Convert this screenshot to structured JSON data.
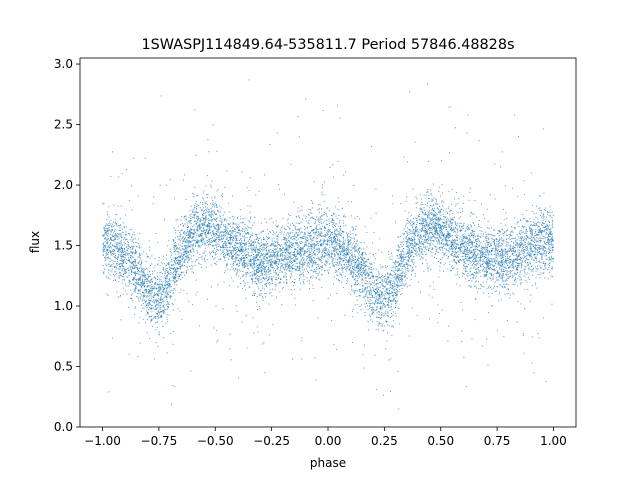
{
  "chart_data": {
    "type": "scatter",
    "title": "1SWASPJ114849.64-535811.7 Period 57846.48828s",
    "xlabel": "phase",
    "ylabel": "flux",
    "xlim": [
      -1.1,
      1.1
    ],
    "ylim": [
      0.0,
      3.05
    ],
    "xticks": [
      -1.0,
      -0.75,
      -0.5,
      -0.25,
      0.0,
      0.25,
      0.5,
      0.75,
      1.0
    ],
    "xtick_labels": [
      "−1.00",
      "−0.75",
      "−0.50",
      "−0.25",
      "0.00",
      "0.25",
      "0.50",
      "0.75",
      "1.00"
    ],
    "yticks": [
      0.0,
      0.5,
      1.0,
      1.5,
      2.0,
      2.5,
      3.0
    ],
    "ytick_labels": [
      "0.0",
      "0.5",
      "1.0",
      "1.5",
      "2.0",
      "2.5",
      "3.0"
    ],
    "grid": false,
    "legend": "none",
    "marker_color": "#1f77b4",
    "series": [
      {
        "description_of_trend_points": "phase-folded light curve, mirrored over two cycles",
        "x": [
          -1.0,
          -0.95,
          -0.9,
          -0.85,
          -0.8,
          -0.75,
          -0.7,
          -0.65,
          -0.6,
          -0.55,
          -0.5,
          -0.45,
          -0.4,
          -0.35,
          -0.3,
          -0.25,
          -0.2,
          -0.15,
          -0.1,
          -0.05,
          0.0,
          0.05,
          0.1,
          0.15,
          0.2,
          0.25,
          0.3,
          0.35,
          0.4,
          0.45,
          0.5,
          0.55,
          0.6,
          0.65,
          0.7,
          0.75,
          0.8,
          0.85,
          0.9,
          0.95,
          1.0
        ],
        "y": [
          1.55,
          1.5,
          1.4,
          1.28,
          1.12,
          1.05,
          1.2,
          1.45,
          1.6,
          1.65,
          1.62,
          1.55,
          1.48,
          1.42,
          1.38,
          1.38,
          1.4,
          1.45,
          1.48,
          1.52,
          1.55,
          1.5,
          1.4,
          1.28,
          1.12,
          1.05,
          1.2,
          1.45,
          1.6,
          1.65,
          1.62,
          1.55,
          1.48,
          1.42,
          1.38,
          1.38,
          1.4,
          1.45,
          1.48,
          1.52,
          1.55
        ]
      }
    ]
  }
}
